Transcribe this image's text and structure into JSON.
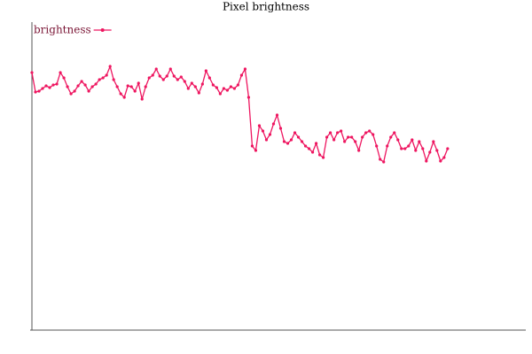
{
  "chart_data": {
    "type": "line",
    "title": "Pixel brightness",
    "series": [
      {
        "name": "brightness",
        "color": "#ee1660",
        "values": [
          291,
          269,
          270,
          273,
          276,
          274,
          277,
          278,
          291,
          285,
          275,
          267,
          270,
          276,
          281,
          277,
          270,
          275,
          278,
          283,
          285,
          288,
          298,
          283,
          275,
          267,
          263,
          276,
          275,
          270,
          279,
          261,
          275,
          285,
          288,
          295,
          287,
          283,
          287,
          295,
          287,
          283,
          286,
          281,
          273,
          279,
          275,
          268,
          278,
          293,
          285,
          277,
          274,
          267,
          273,
          271,
          275,
          273,
          277,
          288,
          295,
          263,
          208,
          203,
          231,
          225,
          215,
          221,
          233,
          243,
          228,
          213,
          211,
          215,
          223,
          218,
          213,
          208,
          205,
          201,
          211,
          198,
          195,
          218,
          223,
          215,
          223,
          225,
          213,
          218,
          218,
          213,
          203,
          218,
          223,
          225,
          221,
          208,
          193,
          190,
          208,
          218,
          223,
          215,
          205,
          205,
          208,
          215,
          203,
          213,
          205,
          191,
          201,
          213,
          203,
          191,
          195,
          205
        ]
      }
    ],
    "xlim": [
      0,
      139
    ],
    "ylim": [
      0,
      348
    ],
    "legend": "upper left",
    "legend_text_color": "#7a1535"
  }
}
